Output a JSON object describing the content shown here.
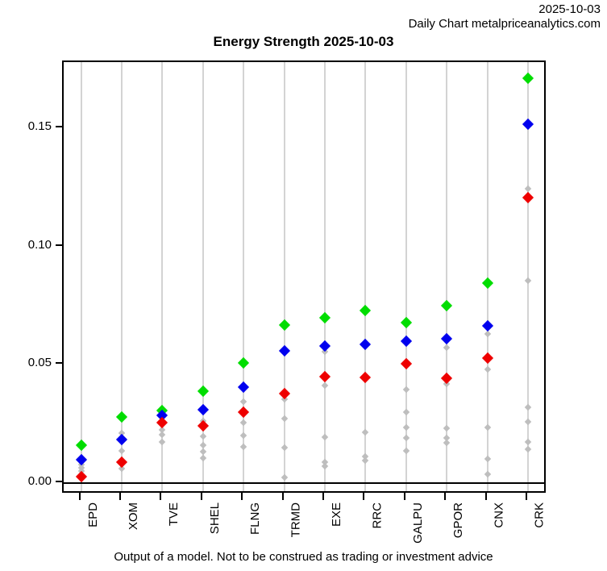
{
  "header": {
    "date": "2025-10-03",
    "source": "Daily Chart metalpriceanalytics.com"
  },
  "footer": {
    "disclaimer": "Output of a model. Not to be construed as trading or investment advice"
  },
  "colors": {
    "green_marker": "#00DD00",
    "blue_marker": "#0000EE",
    "red_marker": "#EE0000",
    "gray_marker": "#BEBEBE",
    "gridline": "#D3D3D3",
    "axis": "#000000"
  },
  "chart_data": {
    "type": "scatter",
    "title": "Energy Strength 2025-10-03",
    "categories": [
      "EPD",
      "XOM",
      "TVE",
      "SHEL",
      "FLNG",
      "TRMD",
      "EXE",
      "RRC",
      "GALPU",
      "GPOR",
      "CNX",
      "CRK"
    ],
    "series": [
      {
        "name": "gray-minor-points",
        "color": "#BEBEBE",
        "size": "small",
        "values": [
          [
            0.008,
            0.0065,
            0.0052
          ],
          [
            0.021,
            0.0135,
            0.0062
          ],
          [
            0.0248,
            0.0225,
            0.0205,
            0.0175
          ],
          [
            0.0263,
            0.0197,
            0.016,
            0.0133,
            0.0104
          ],
          [
            0.0345,
            0.0254,
            0.0201,
            0.0155
          ],
          [
            0.0354,
            0.0274,
            0.015,
            0.0024
          ],
          [
            0.0554,
            0.0413,
            0.0194,
            0.0088,
            0.0071
          ],
          [
            0.0216,
            0.0112,
            0.0095
          ],
          [
            0.0395,
            0.0301,
            0.0236,
            0.0191,
            0.0137
          ],
          [
            0.0571,
            0.0418,
            0.0231,
            0.0191,
            0.0169
          ],
          [
            0.063,
            0.0481,
            0.0234,
            0.0101,
            0.0038
          ],
          [
            0.1244,
            0.0857,
            0.0322,
            0.026,
            0.0175,
            0.0143
          ]
        ]
      },
      {
        "name": "green-points",
        "color": "#00DD00",
        "size": "big",
        "values": [
          0.0161,
          0.0281,
          0.0307,
          0.039,
          0.0507,
          0.0668,
          0.0699,
          0.0731,
          0.0679,
          0.0751,
          0.0845,
          0.171
        ]
      },
      {
        "name": "blue-points",
        "color": "#0000EE",
        "size": "big",
        "values": [
          0.01,
          0.0184,
          0.0288,
          0.0311,
          0.0407,
          0.0558,
          0.058,
          0.0586,
          0.0599,
          0.0609,
          0.0664,
          0.1516
        ]
      },
      {
        "name": "red-points",
        "color": "#EE0000",
        "size": "big",
        "values": [
          0.0026,
          0.009,
          0.0254,
          0.0243,
          0.0299,
          0.0379,
          0.0449,
          0.0447,
          0.0506,
          0.0443,
          0.0529,
          0.1205
        ]
      }
    ],
    "xlabel": "",
    "ylabel": "",
    "ytick_values": [
      0.0,
      0.05,
      0.1,
      0.15
    ],
    "ytick_labels": [
      "0.00",
      "0.05",
      "0.10",
      "0.15"
    ],
    "ylim": [
      -0.0044,
      0.1783
    ],
    "grid": "vertical",
    "zero_line": true,
    "legend": "none"
  }
}
